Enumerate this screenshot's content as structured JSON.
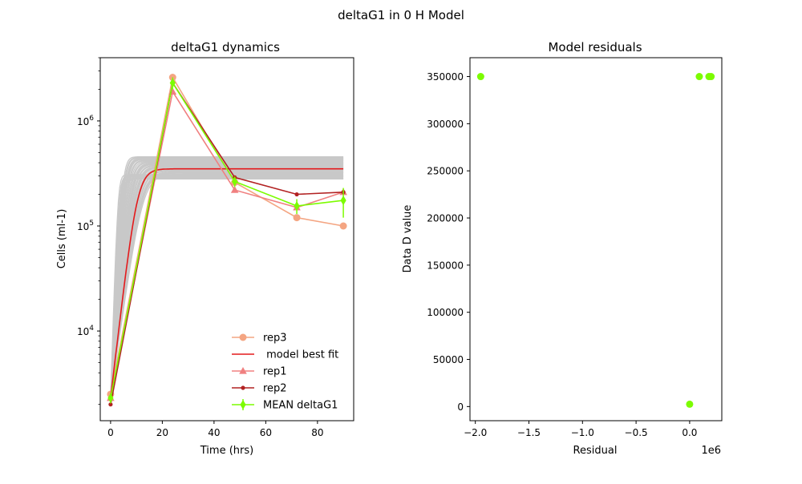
{
  "figure": {
    "suptitle": "deltaG1 in 0 H Model"
  },
  "chart_data": [
    {
      "type": "line",
      "title": "deltaG1 dynamics",
      "xlabel": "Time (hrs)",
      "ylabel": "Cells (ml-1)",
      "yscale": "log",
      "xlim": [
        -4,
        94
      ],
      "ylim": [
        1400,
        4000000
      ],
      "xticks": [
        0,
        20,
        40,
        60,
        80
      ],
      "yticks": [
        10000,
        100000,
        1000000
      ],
      "ytick_labels": [
        {
          "base": "10",
          "exp": "4"
        },
        {
          "base": "10",
          "exp": "5"
        },
        {
          "base": "10",
          "exp": "6"
        }
      ],
      "grid": false,
      "legend_position": "lower-right",
      "ensemble": {
        "color": "#c8c8c8",
        "start_value": 2300,
        "plateau_range": [
          280000,
          460000
        ],
        "rise_time_range": [
          4,
          18
        ],
        "count": 40
      },
      "series": [
        {
          "name": "rep3",
          "color": "#f4a582",
          "marker": "circle",
          "x": [
            0,
            24,
            48,
            72,
            90
          ],
          "y": [
            2500,
            2600000,
            260000,
            120000,
            100000
          ]
        },
        {
          "name": " model best fit",
          "color": "#e41a1c",
          "marker": "none",
          "kind": "model",
          "x0": 0,
          "y0": 2300,
          "plateau": 350000,
          "rise_time": 15,
          "x_end": 90
        },
        {
          "name": "rep1",
          "color": "#f08080",
          "marker": "triangle",
          "x": [
            0,
            24,
            48,
            72,
            90
          ],
          "y": [
            2300,
            1900000,
            220000,
            150000,
            210000
          ]
        },
        {
          "name": "rep2",
          "color": "#b22222",
          "marker": "dot",
          "x": [
            0,
            24,
            48,
            72,
            90
          ],
          "y": [
            2000,
            2300000,
            290000,
            200000,
            210000
          ]
        },
        {
          "name": "MEAN deltaG1",
          "color": "#7cfc00",
          "marker": "diamond",
          "errorbars": true,
          "x": [
            0,
            24,
            48,
            72,
            90
          ],
          "y": [
            2300,
            2300000,
            265000,
            155000,
            175000
          ],
          "err_low": [
            250,
            300000,
            30000,
            25000,
            55000
          ],
          "err_high": [
            250,
            300000,
            30000,
            25000,
            55000
          ]
        }
      ]
    },
    {
      "type": "scatter",
      "title": "Model residuals",
      "xlabel": "Residual",
      "ylabel": "Data D value",
      "x_offset_label": "1e6",
      "xlim": [
        -2.05,
        0.3
      ],
      "ylim": [
        -15000,
        370000
      ],
      "xticks": [
        -2.0,
        -1.5,
        -1.0,
        -0.5,
        0.0
      ],
      "xtick_labels": [
        "−2.0",
        "−1.5",
        "−1.0",
        "−0.5",
        "0.0"
      ],
      "yticks": [
        0,
        50000,
        100000,
        150000,
        200000,
        250000,
        300000,
        350000
      ],
      "ytick_labels": [
        "0",
        "50000",
        "100000",
        "150000",
        "200000",
        "250000",
        "300000",
        "350000"
      ],
      "grid": false,
      "points": {
        "color": "#7cfc00",
        "x": [
          -1.95,
          0.09,
          0.18,
          0.2,
          0.0
        ],
        "y": [
          350000,
          350000,
          350000,
          350000,
          2500
        ]
      }
    }
  ]
}
